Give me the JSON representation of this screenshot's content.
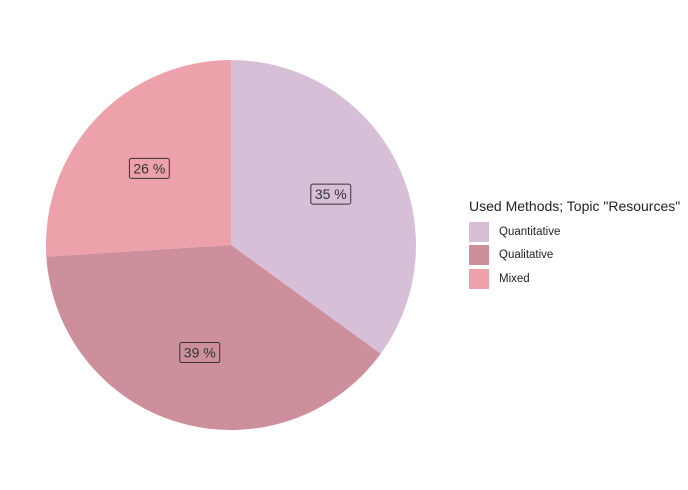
{
  "chart_data": {
    "type": "pie",
    "legend_title": "Used Methods; Topic \"Resources\"",
    "legend_position": "right",
    "label_unit": "%",
    "slices": [
      {
        "name": "Quantitative",
        "value": 35,
        "color": "#d8bfd8"
      },
      {
        "name": "Qualitative",
        "value": 39,
        "color": "#cc8f9b"
      },
      {
        "name": "Mixed",
        "value": 26,
        "color": "#eda1ab"
      }
    ],
    "start": "top",
    "direction": "clockwise"
  }
}
